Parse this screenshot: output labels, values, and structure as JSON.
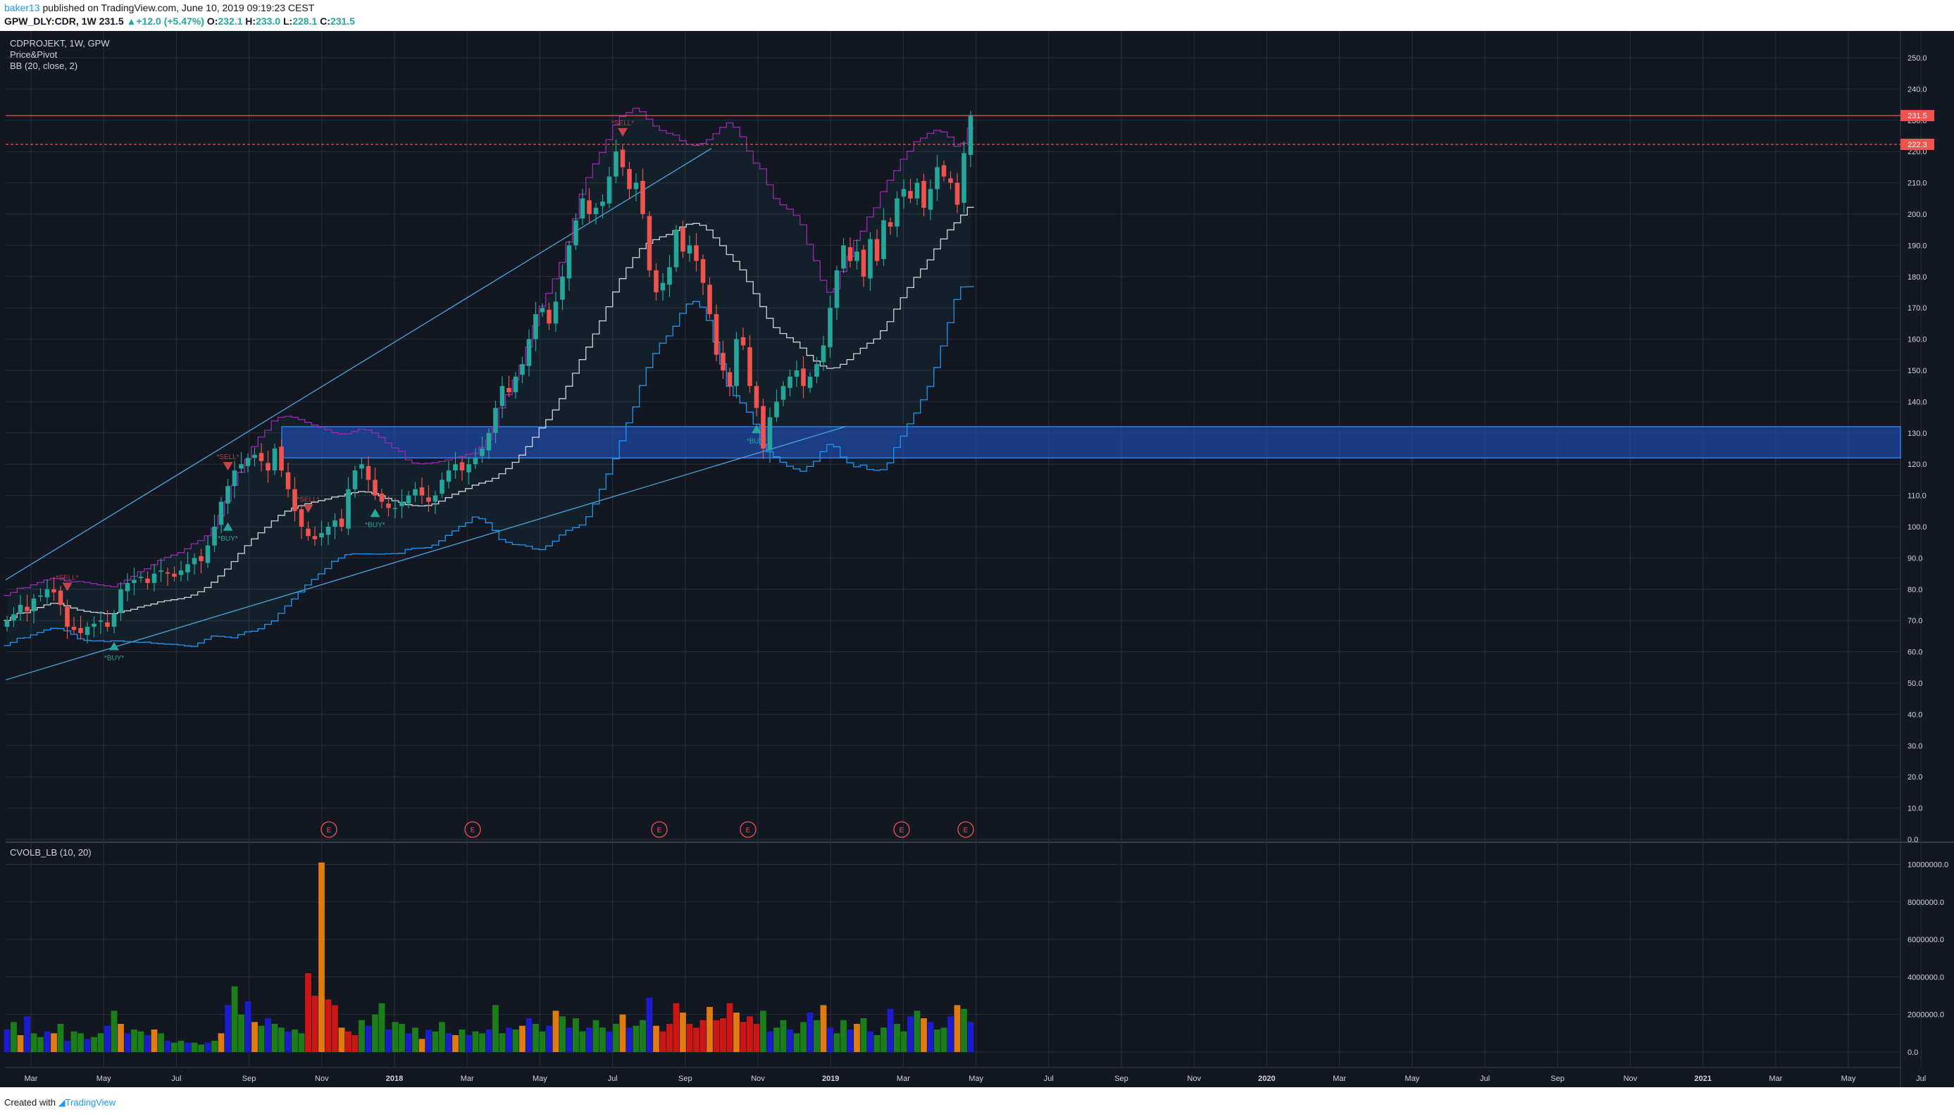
{
  "header": {
    "user": "baker13",
    "published": "published on TradingView.com, June 10, 2019 09:19:23 CEST",
    "symbol": "GPW_DLY:CDR, 1W",
    "last": "231.5",
    "change_arrow": "▲",
    "change": "+12.0 (+5.47%)",
    "o_label": "O:",
    "o": "232.1",
    "h_label": "H:",
    "h": "233.0",
    "l_label": "L:",
    "l": "228.1",
    "c_label": "C:",
    "c": "231.5"
  },
  "legend": {
    "line1": "CDPROJEKT, 1W, GPW",
    "line2": "Price&Pivot",
    "line3": "BB (20, close, 2)"
  },
  "volume_pane": {
    "label": "CVOLB_LB (10, 20)"
  },
  "footer": {
    "created": "Created with",
    "brand": "TradingView"
  },
  "colors": {
    "background": "#131722",
    "grid": "#2a2e39",
    "up": "#26a69a",
    "down": "#ef5350",
    "bb_basis": "#d1d4dc",
    "bb_upper": "#9c27b0",
    "bb_lower": "#2196f3",
    "zone": "#1e4eb8",
    "trend": "#4aa6dd",
    "vol_green": "#1b7e1b",
    "vol_blue": "#1c1ccf",
    "vol_red": "#cc1616",
    "vol_orange": "#e07b12"
  },
  "chart_data": [
    {
      "type": "candlestick",
      "title": "CDPROJEKT, 1W, GPW",
      "y_axis": {
        "min": 0,
        "max": 250,
        "step": 10,
        "side": "right",
        "labels": [
          "0.0",
          "10.0",
          "20.0",
          "30.0",
          "40.0",
          "50.0",
          "60.0",
          "70.0",
          "80.0",
          "90.0",
          "100.0",
          "110.0",
          "120.0",
          "130.0",
          "140.0",
          "150.0",
          "160.0",
          "170.0",
          "180.0",
          "190.0",
          "200.0",
          "210.0",
          "220.0",
          "230.0",
          "240.0",
          "250.0"
        ]
      },
      "x_axis": {
        "labels": [
          "Mar",
          "May",
          "Jul",
          "Sep",
          "Nov",
          "2018",
          "Mar",
          "May",
          "Jul",
          "Sep",
          "Nov",
          "2019",
          "Mar",
          "May",
          "Jul",
          "Sep",
          "Nov",
          "2020",
          "Mar",
          "May",
          "Jul",
          "Sep",
          "Nov",
          "2021",
          "Mar",
          "May",
          "Jul"
        ]
      },
      "closes": [
        70,
        72,
        75,
        73,
        77,
        78,
        80,
        79,
        75,
        68,
        67,
        66,
        68,
        69,
        70,
        68,
        72,
        80,
        82,
        83,
        84,
        82,
        85,
        86,
        85,
        84,
        86,
        88,
        90,
        89,
        94,
        100,
        108,
        113,
        118,
        120,
        122,
        123,
        121,
        118,
        125,
        118,
        112,
        105,
        100,
        97,
        96,
        98,
        100,
        102,
        100,
        112,
        118,
        120,
        115,
        110,
        108,
        106,
        106,
        108,
        110,
        112,
        110,
        108,
        110,
        115,
        118,
        120,
        118,
        120,
        122,
        125,
        130,
        138,
        145,
        143,
        148,
        152,
        160,
        168,
        170,
        165,
        172,
        180,
        190,
        198,
        205,
        200,
        202,
        204,
        212,
        220,
        215,
        208,
        210,
        200,
        182,
        175,
        178,
        183,
        195,
        188,
        190,
        185,
        178,
        168,
        155,
        150,
        145,
        160,
        158,
        145,
        138,
        125,
        135,
        140,
        145,
        148,
        150,
        145,
        148,
        152,
        158,
        170,
        182,
        190,
        185,
        188,
        180,
        192,
        185,
        198,
        196,
        205,
        208,
        205,
        210,
        202,
        208,
        215,
        212,
        210,
        203,
        219.5,
        231.5
      ],
      "price_labels": [
        {
          "value": 231.5,
          "text": "231.5"
        },
        {
          "value": 222.3,
          "text": "222.3"
        }
      ],
      "horizontal_lines": [
        231.5,
        222.3
      ],
      "zone": [
        122,
        132
      ],
      "signals": [
        {
          "text": "*BUY*"
        },
        {
          "text": "*SELL*"
        }
      ],
      "earnings_marker": "E"
    },
    {
      "type": "bar",
      "title": "CVOLB_LB (10, 20)",
      "y_axis": {
        "min": 0,
        "max": 11000000,
        "labels": [
          "0.0",
          "2000000.0",
          "4000000.0",
          "6000000.0",
          "8000000.0",
          "10000000.0"
        ]
      },
      "values": [
        1.2,
        1.6,
        0.9,
        1.9,
        1.0,
        0.8,
        1.1,
        1.0,
        1.5,
        0.6,
        1.1,
        1.0,
        0.7,
        0.8,
        1.0,
        1.4,
        2.2,
        1.5,
        1.0,
        1.2,
        1.1,
        0.9,
        1.2,
        1.0,
        0.6,
        0.5,
        0.6,
        0.5,
        0.5,
        0.4,
        0.5,
        0.6,
        1.0,
        2.5,
        3.5,
        2.0,
        2.7,
        1.6,
        1.4,
        1.8,
        1.5,
        1.3,
        1.1,
        1.2,
        1.0,
        4.2,
        3.0,
        10.1,
        2.8,
        2.5,
        1.3,
        1.1,
        0.9,
        1.7,
        1.4,
        2.0,
        2.6,
        1.2,
        1.6,
        1.5,
        1.0,
        1.3,
        0.7,
        1.2,
        1.1,
        1.6,
        1.0,
        0.9,
        1.2,
        0.9,
        1.1,
        1.0,
        1.2,
        2.5,
        1.0,
        1.3,
        1.2,
        1.4,
        1.8,
        1.5,
        1.1,
        1.4,
        2.2,
        1.9,
        1.3,
        1.8,
        1.1,
        1.3,
        1.7,
        1.3,
        1.1,
        1.5,
        2.0,
        1.3,
        1.4,
        1.7,
        2.9,
        1.4,
        1.1,
        1.5,
        2.6,
        2.1,
        1.5,
        1.3,
        1.7,
        2.4,
        1.7,
        1.8,
        2.6,
        2.1,
        1.6,
        1.9,
        1.5,
        2.2,
        1.1,
        1.3,
        1.7,
        1.2,
        1.0,
        1.6,
        2.1,
        1.7,
        2.5,
        1.3,
        1.0,
        1.7,
        1.2,
        1.5,
        1.8,
        1.1,
        0.9,
        1.3,
        2.3,
        1.5,
        1.1,
        1.9,
        2.2,
        1.8,
        1.6,
        1.2,
        1.3,
        1.9,
        2.5,
        2.3,
        1.6
      ],
      "value_unit": "millions"
    }
  ]
}
